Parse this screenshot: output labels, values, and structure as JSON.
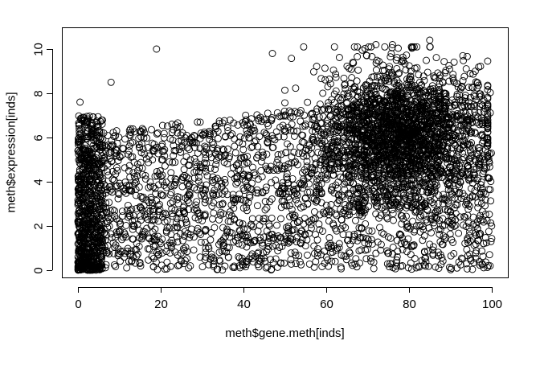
{
  "chart_data": {
    "type": "scatter",
    "title": "",
    "xlabel": "meth$gene.meth[inds]",
    "ylabel": "meth$expression[inds]",
    "xlim": [
      0,
      100
    ],
    "ylim": [
      0,
      10
    ],
    "x_ticks": [
      0,
      20,
      40,
      60,
      80,
      100
    ],
    "y_ticks": [
      0,
      2,
      4,
      6,
      8,
      10
    ],
    "x_tick_labels": [
      "0",
      "20",
      "40",
      "60",
      "80",
      "100"
    ],
    "y_tick_labels": [
      "0",
      "2",
      "4",
      "6",
      "8",
      "10"
    ],
    "grid": false,
    "legend": "none",
    "marker": "open-circle",
    "color": "#000000",
    "n_points_approx": 5000,
    "point_clusters": [
      {
        "name": "low-methylation column",
        "x_range": [
          0,
          6
        ],
        "y_range": [
          0,
          7
        ],
        "density": "very high",
        "approx_points": 700
      },
      {
        "name": "high-methylation dense region",
        "x_center": 78,
        "y_center": 6.2,
        "x_spread": 10,
        "y_spread": 1.6,
        "density": "very high",
        "approx_points": 2000
      },
      {
        "name": "broad background",
        "x_range": [
          0,
          100
        ],
        "y_range": [
          0,
          10
        ],
        "density": "moderate",
        "approx_points": 2300
      }
    ],
    "notable_points": [
      {
        "x": 19,
        "y": 10.0
      },
      {
        "x": 47,
        "y": 9.8
      },
      {
        "x": 72,
        "y": 10.2
      },
      {
        "x": 76,
        "y": 10.2
      },
      {
        "x": 85,
        "y": 10.4
      },
      {
        "x": 93,
        "y": 9.7
      },
      {
        "x": 0.5,
        "y": 7.6
      },
      {
        "x": 8,
        "y": 8.5
      }
    ]
  }
}
